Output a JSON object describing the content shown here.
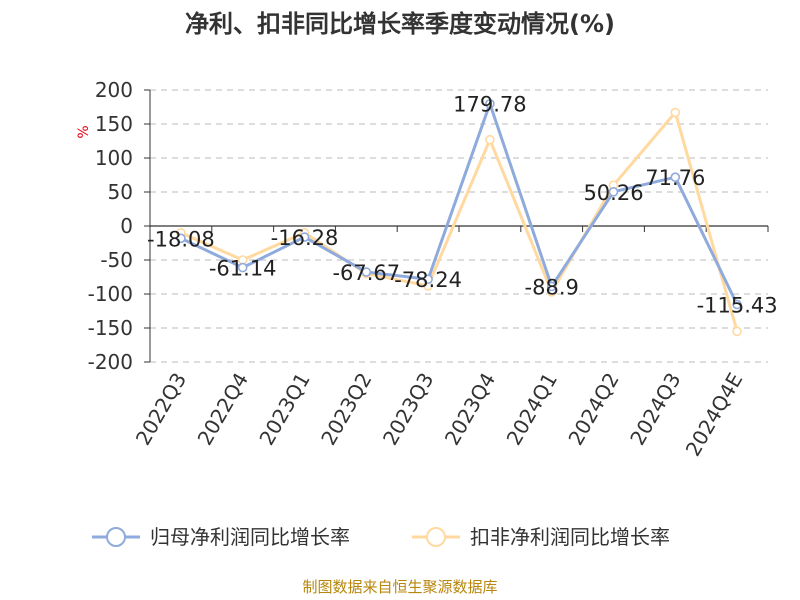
{
  "chart_data": {
    "type": "line",
    "title": "净利、扣非同比增长率季度变动情况(%)",
    "ylabel": "%",
    "ylim": [
      -200,
      200
    ],
    "yticks": [
      200,
      150,
      100,
      50,
      0,
      -50,
      -100,
      -150,
      -200
    ],
    "categories": [
      "2022Q3",
      "2022Q4",
      "2023Q1",
      "2023Q2",
      "2023Q3",
      "2023Q4",
      "2024Q1",
      "2024Q2",
      "2024Q3",
      "2024Q4E"
    ],
    "series": [
      {
        "name": "归母净利润同比增长率",
        "color": "#8faadc",
        "values": [
          -18.08,
          -61.14,
          -16.28,
          -67.67,
          -78.24,
          179.78,
          -88.9,
          50.26,
          71.76,
          -115.43
        ],
        "labels": [
          "-18.08",
          "-61.14",
          "-16.28",
          "-67.67",
          "-78.24",
          "179.78",
          "-88.9",
          "50.26",
          "71.76",
          "-115.43"
        ]
      },
      {
        "name": "扣非净利润同比增长率",
        "color": "#ffd9a0",
        "values": [
          -10,
          -50,
          -10,
          -70,
          -88,
          127,
          -97,
          60,
          167,
          -155
        ]
      }
    ],
    "grid": true,
    "legend_position": "bottom"
  },
  "source": "制图数据来自恒生聚源数据库"
}
